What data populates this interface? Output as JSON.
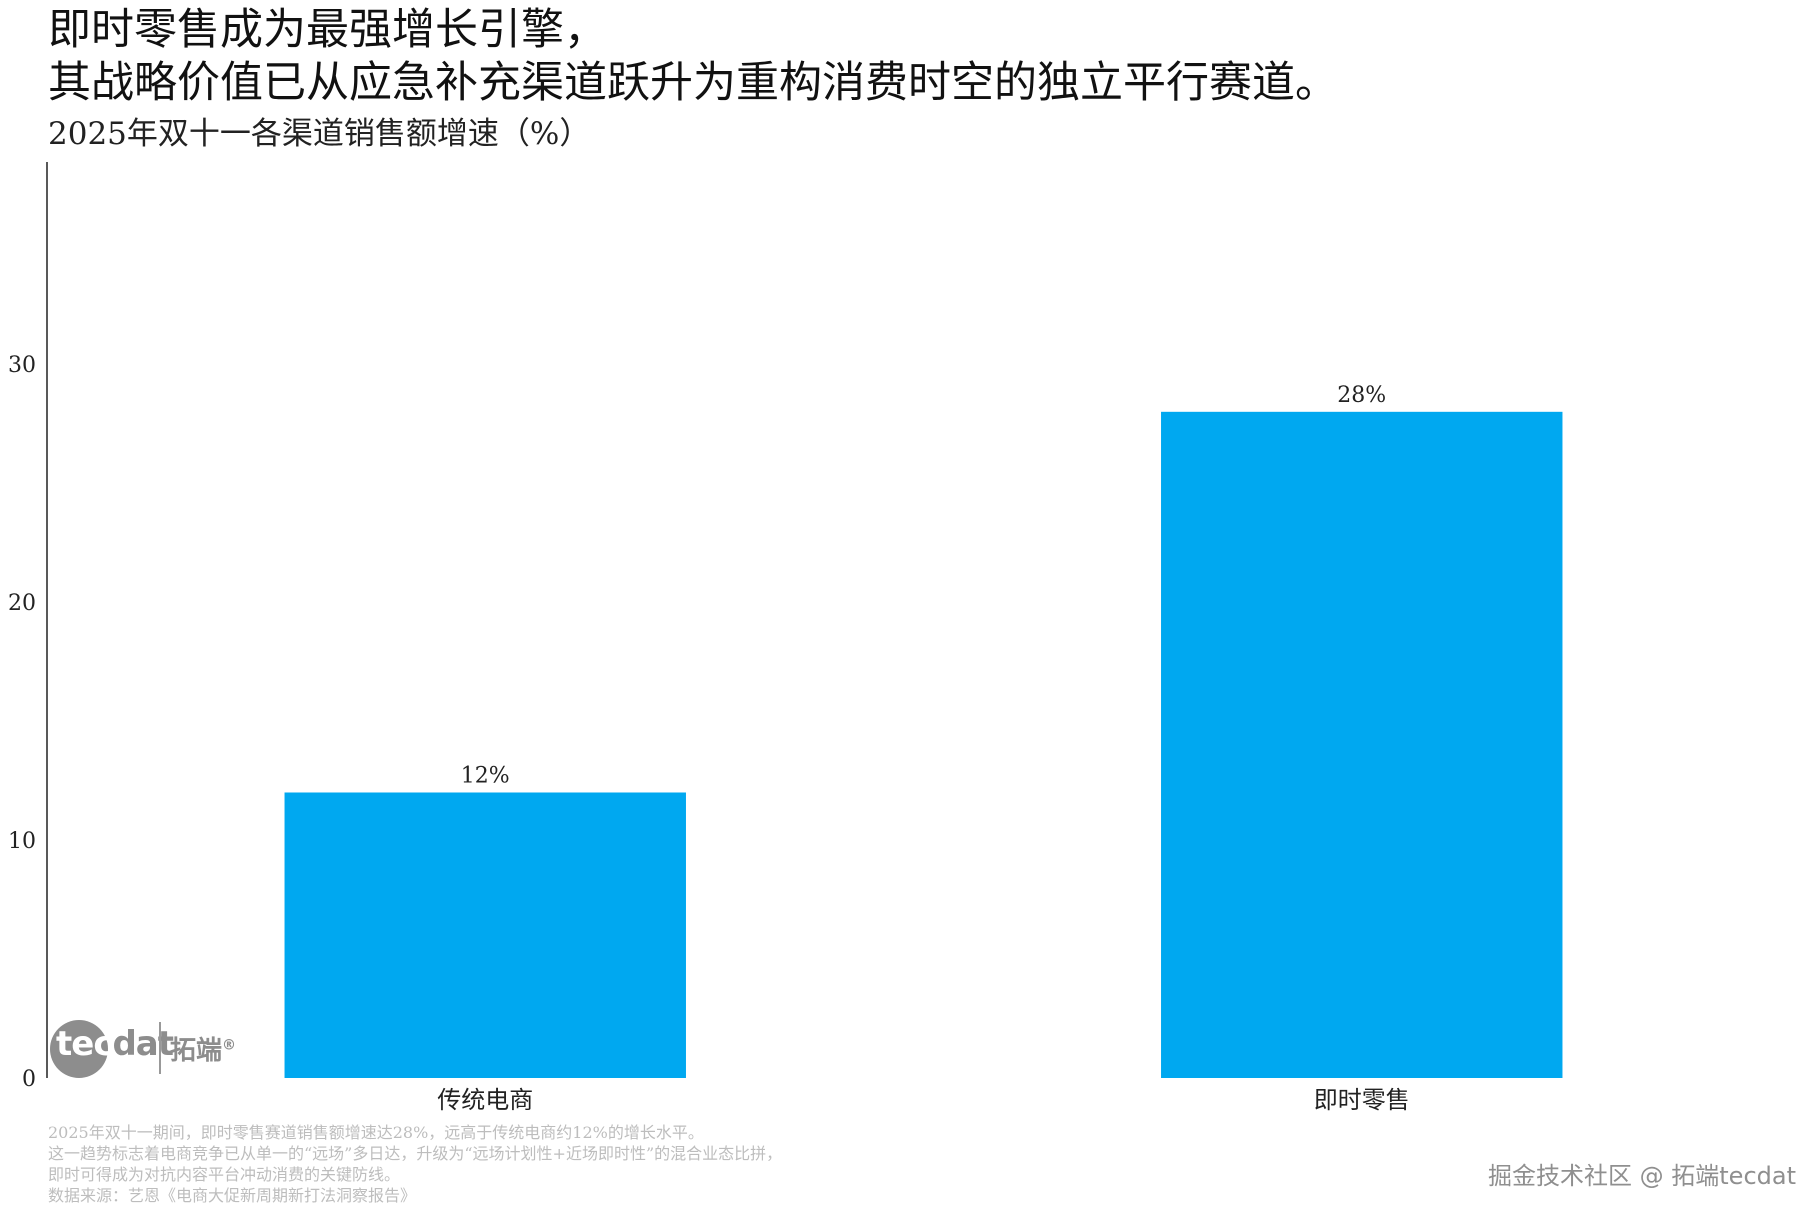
{
  "header": {
    "title_line1": "即时零售成为最强增长引擎，",
    "title_line2": "其战略价值已从应急补充渠道跃升为重构消费时空的独立平行赛道。",
    "subtitle": "2025年双十一各渠道销售额增速（%）"
  },
  "chart_data": {
    "type": "bar",
    "categories": [
      "传统电商",
      "即时零售"
    ],
    "values": [
      12,
      28
    ],
    "data_labels": [
      "12%",
      "28%"
    ],
    "title": "2025年双十一各渠道销售额增速（%）",
    "xlabel": "",
    "ylabel": "",
    "ylim": [
      0,
      38.5
    ],
    "yticks": [
      0,
      10,
      20,
      30
    ],
    "grid": false,
    "bar_color": "#00a8f0"
  },
  "logo": {
    "word_a": "tec",
    "word_b": "dat",
    "cn": "拓端",
    "mark": "®"
  },
  "notes": [
    "2025年双十一期间，即时零售赛道销售额增速达28%，远高于传统电商约12%的增长水平。",
    "这一趋势标志着电商竞争已从单一的“远场”多日达，升级为“远场计划性+近场即时性”的混合业态比拼，",
    "即时可得成为对抗内容平台冲动消费的关键防线。",
    "数据来源：艺恩《电商大促新周期新打法洞察报告》"
  ],
  "watermark": "掘金技术社区 @ 拓端tecdat"
}
